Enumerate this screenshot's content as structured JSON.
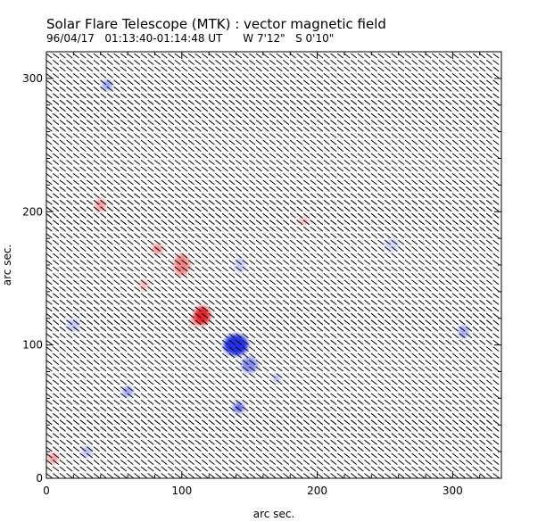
{
  "chart_data": {
    "type": "heatmap",
    "title": "Solar Flare Telescope (MTK) : vector magnetic field",
    "subtitle": "96/04/17   01:13:40-01:14:48 UT      W 7'12\"   S 0'10\"",
    "xlabel": "arc sec.",
    "ylabel": "arc sec.",
    "xlim": [
      0,
      336
    ],
    "ylim": [
      0,
      320
    ],
    "xticks": [
      0,
      100,
      200,
      300
    ],
    "yticks": [
      0,
      100,
      200,
      300
    ],
    "grid": false,
    "colormap": {
      "positive": "#e8202a",
      "negative": "#2030e8",
      "zero": "#ffffff"
    },
    "field_vector_angle_deg": -38,
    "field_vector_length": 5.5,
    "grid_step": 5,
    "polarity_blobs": [
      {
        "x": 115,
        "y": 122,
        "sx": 6,
        "sy": 7,
        "value": 1.0
      },
      {
        "x": 110,
        "y": 118,
        "sx": 4,
        "sy": 4,
        "value": 0.4
      },
      {
        "x": 100,
        "y": 160,
        "sx": 6,
        "sy": 8,
        "value": 0.55
      },
      {
        "x": 82,
        "y": 172,
        "sx": 4,
        "sy": 4,
        "value": 0.5
      },
      {
        "x": 40,
        "y": 205,
        "sx": 4,
        "sy": 5,
        "value": 0.45
      },
      {
        "x": 190,
        "y": 193,
        "sx": 4,
        "sy": 3,
        "value": 0.3
      },
      {
        "x": 5,
        "y": 15,
        "sx": 4,
        "sy": 4,
        "value": 0.45
      },
      {
        "x": 72,
        "y": 145,
        "sx": 4,
        "sy": 4,
        "value": 0.3
      },
      {
        "x": 140,
        "y": 100,
        "sx": 9,
        "sy": 8,
        "value": -1.0
      },
      {
        "x": 150,
        "y": 85,
        "sx": 6,
        "sy": 6,
        "value": -0.55
      },
      {
        "x": 142,
        "y": 53,
        "sx": 4,
        "sy": 4,
        "value": -0.7
      },
      {
        "x": 60,
        "y": 65,
        "sx": 4,
        "sy": 4,
        "value": -0.45
      },
      {
        "x": 45,
        "y": 295,
        "sx": 4,
        "sy": 4,
        "value": -0.45
      },
      {
        "x": 308,
        "y": 110,
        "sx": 4,
        "sy": 5,
        "value": -0.4
      },
      {
        "x": 143,
        "y": 160,
        "sx": 4,
        "sy": 6,
        "value": -0.25
      },
      {
        "x": 20,
        "y": 115,
        "sx": 5,
        "sy": 5,
        "value": -0.25
      },
      {
        "x": 255,
        "y": 175,
        "sx": 6,
        "sy": 5,
        "value": -0.2
      },
      {
        "x": 30,
        "y": 20,
        "sx": 4,
        "sy": 4,
        "value": -0.3
      },
      {
        "x": 170,
        "y": 75,
        "sx": 3,
        "sy": 3,
        "value": -0.35
      }
    ]
  }
}
